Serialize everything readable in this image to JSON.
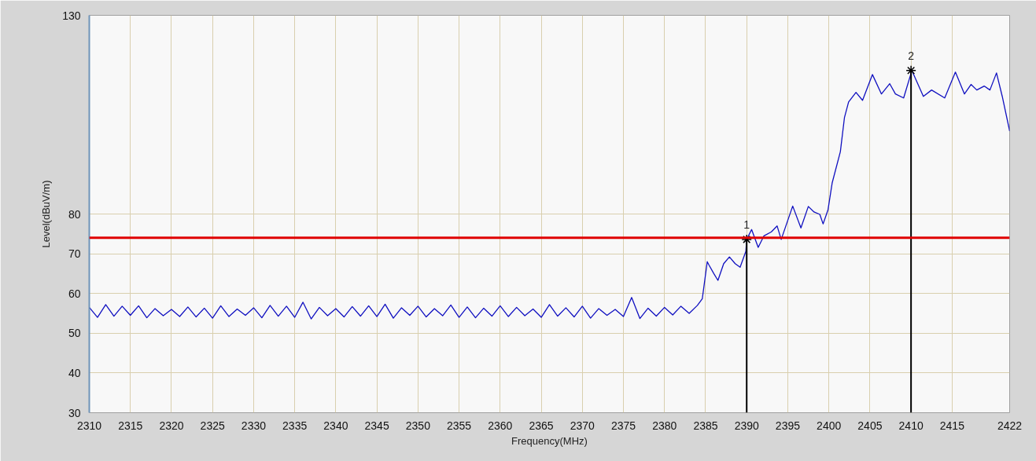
{
  "chart_data": {
    "type": "line",
    "xlabel": "Frequency(MHz)",
    "ylabel": "Level(dBuV/m)",
    "xlim": [
      2310,
      2422
    ],
    "ylim": [
      30,
      130
    ],
    "xticks": [
      2310,
      2315,
      2320,
      2325,
      2330,
      2335,
      2340,
      2345,
      2350,
      2355,
      2360,
      2365,
      2370,
      2375,
      2380,
      2385,
      2390,
      2395,
      2400,
      2405,
      2410,
      2415,
      2422
    ],
    "yticks": [
      30,
      40,
      50,
      60,
      70,
      80,
      130
    ],
    "grid": true,
    "series": [
      {
        "color": "#1010c0",
        "x": [
          2310,
          2311,
          2312,
          2313,
          2314,
          2315,
          2316,
          2317,
          2318,
          2319,
          2320,
          2321,
          2322,
          2323,
          2324,
          2325,
          2326,
          2327,
          2328,
          2329,
          2330,
          2331,
          2332,
          2333,
          2334,
          2335,
          2336,
          2337,
          2338,
          2339,
          2340,
          2341,
          2342,
          2343,
          2344,
          2345,
          2346,
          2347,
          2348,
          2349,
          2350,
          2351,
          2352,
          2353,
          2354,
          2355,
          2356,
          2357,
          2358,
          2359,
          2360,
          2361,
          2362,
          2363,
          2364,
          2365,
          2366,
          2367,
          2368,
          2369,
          2370,
          2371,
          2372,
          2373,
          2374,
          2375,
          2376,
          2377,
          2378,
          2379,
          2380,
          2381,
          2382,
          2383,
          2384,
          2384.6,
          2385.2,
          2385.4,
          2386.0,
          2386.5,
          2387.2,
          2387.9,
          2388.6,
          2389.2,
          2389.9,
          2390.0,
          2390.6,
          2391.4,
          2392.1,
          2393.0,
          2393.7,
          2394.2,
          2395.6,
          2396.6,
          2397.5,
          2398.2,
          2398.9,
          2399.3,
          2399.9,
          2400.4,
          2401.4,
          2401.9,
          2402.4,
          2403.3,
          2404.1,
          2405.3,
          2406.4,
          2407.4,
          2408.1,
          2409.1,
          2410.1,
          2411.5,
          2412.5,
          2414.1,
          2415.4,
          2416.5,
          2417.3,
          2418.0,
          2418.9,
          2419.6,
          2420.4,
          2421.1,
          2422.0
        ],
        "values": [
          56.5,
          54.0,
          57.2,
          54.3,
          56.8,
          54.5,
          56.9,
          53.9,
          56.2,
          54.4,
          56.0,
          54.2,
          56.6,
          54.1,
          56.3,
          53.8,
          56.9,
          54.2,
          56.1,
          54.5,
          56.4,
          53.9,
          57.0,
          54.3,
          56.8,
          54.0,
          57.8,
          53.6,
          56.5,
          54.4,
          56.2,
          54.1,
          56.7,
          54.3,
          56.9,
          54.2,
          57.3,
          53.8,
          56.4,
          54.5,
          56.8,
          54.1,
          56.2,
          54.4,
          57.1,
          54.0,
          56.6,
          53.9,
          56.3,
          54.3,
          56.9,
          54.2,
          56.5,
          54.4,
          56.1,
          54.0,
          57.2,
          54.3,
          56.4,
          54.1,
          56.8,
          53.8,
          56.2,
          54.5,
          56.0,
          54.2,
          59.0,
          53.7,
          56.3,
          54.3,
          56.5,
          54.6,
          56.8,
          55.0,
          57.0,
          58.7,
          68.0,
          67.2,
          65.0,
          63.3,
          67.5,
          69.2,
          67.5,
          66.6,
          70.6,
          73.6,
          76.1,
          71.6,
          74.5,
          75.5,
          77.0,
          73.6,
          82.0,
          76.5,
          81.9,
          80.5,
          79.9,
          77.5,
          81.1,
          87.8,
          95.7,
          104.3,
          108.2,
          110.6,
          108.6,
          115.1,
          110.2,
          112.8,
          110.2,
          109.2,
          116.1,
          109.6,
          111.2,
          109.2,
          115.7,
          110.2,
          112.6,
          111.2,
          112.2,
          111.2,
          115.5,
          109.6,
          100.9
        ]
      },
      {
        "type": "lollipop",
        "color": "#000000",
        "marker": "cross",
        "x": [
          2390,
          2410
        ],
        "values": [
          73.6,
          116.1
        ]
      }
    ],
    "ref_lines": [
      {
        "axis": "y",
        "value": 74,
        "color": "#e00000"
      }
    ],
    "annotations": [
      {
        "text": "1",
        "x": 2390,
        "y": 73.6
      },
      {
        "text": "2",
        "x": 2410,
        "y": 116.1
      }
    ]
  }
}
